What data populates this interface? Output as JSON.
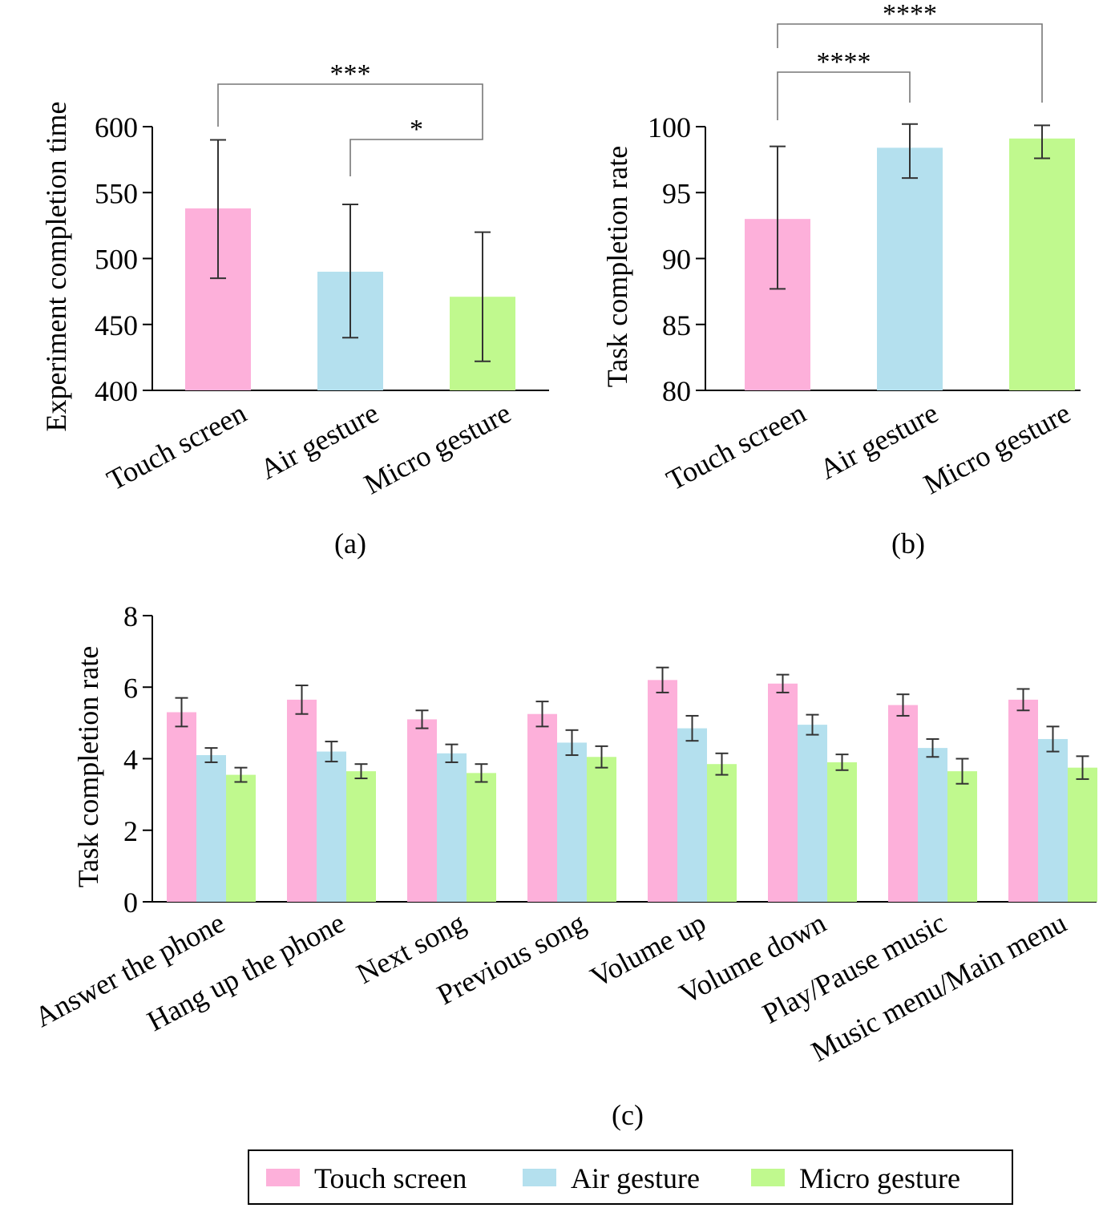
{
  "colors": {
    "Touch screen": "#fdb0da",
    "Air gesture": "#b4e0ee",
    "Micro gesture": "#c0f98e"
  },
  "legend": {
    "items": [
      "Touch screen",
      "Air gesture",
      "Micro gesture"
    ],
    "placement": "bottom-center"
  },
  "chart_data": [
    {
      "type": "bar",
      "panel_label": "(a)",
      "ylabel": "Experiment completion time",
      "xlabel": "",
      "ylim": [
        400,
        600
      ],
      "yticks": [
        400,
        450,
        500,
        550,
        600
      ],
      "categories": [
        "Touch screen",
        "Air gesture",
        "Micro gesture"
      ],
      "values": [
        538,
        490,
        471
      ],
      "err_low": [
        485,
        440,
        422
      ],
      "err_high": [
        590,
        541,
        520
      ],
      "significance": [
        {
          "from": "Touch screen",
          "to": "Micro gesture",
          "label": "***"
        },
        {
          "from": "Air gesture",
          "to": "Micro gesture",
          "label": "*"
        }
      ],
      "grid": false
    },
    {
      "type": "bar",
      "panel_label": "(b)",
      "ylabel": "Task completion rate",
      "xlabel": "",
      "ylim": [
        80,
        100
      ],
      "yticks": [
        80,
        85,
        90,
        95,
        100
      ],
      "categories": [
        "Touch screen",
        "Air gesture",
        "Micro gesture"
      ],
      "values": [
        93,
        98.4,
        99.1
      ],
      "err_low": [
        87.7,
        96.1,
        97.6
      ],
      "err_high": [
        98.5,
        100.2,
        100.1
      ],
      "significance": [
        {
          "from": "Touch screen",
          "to": "Air gesture",
          "label": "****"
        },
        {
          "from": "Touch screen",
          "to": "Micro gesture",
          "label": "****"
        }
      ],
      "grid": false
    },
    {
      "type": "bar",
      "panel_label": "(c)",
      "ylabel": "Task completion rate",
      "xlabel": "",
      "ylim": [
        0,
        8
      ],
      "yticks": [
        0,
        2,
        4,
        6,
        8
      ],
      "categories": [
        "Answer the phone",
        "Hang up the phone",
        "Next song",
        "Previous song",
        "Volume up",
        "Volume down",
        "Play/Pause music",
        "Music menu/Main menu"
      ],
      "series": [
        {
          "name": "Touch screen",
          "values": [
            5.3,
            5.65,
            5.1,
            5.25,
            6.2,
            6.1,
            5.5,
            5.65
          ],
          "err": [
            0.4,
            0.4,
            0.25,
            0.35,
            0.35,
            0.25,
            0.3,
            0.3
          ]
        },
        {
          "name": "Air gesture",
          "values": [
            4.1,
            4.2,
            4.15,
            4.45,
            4.85,
            4.95,
            4.3,
            4.55
          ],
          "err": [
            0.2,
            0.28,
            0.25,
            0.35,
            0.35,
            0.28,
            0.25,
            0.35
          ]
        },
        {
          "name": "Micro gesture",
          "values": [
            3.55,
            3.65,
            3.6,
            4.05,
            3.85,
            3.9,
            3.65,
            3.75
          ],
          "err": [
            0.2,
            0.2,
            0.25,
            0.3,
            0.3,
            0.22,
            0.35,
            0.32
          ]
        }
      ],
      "grid": false
    }
  ]
}
